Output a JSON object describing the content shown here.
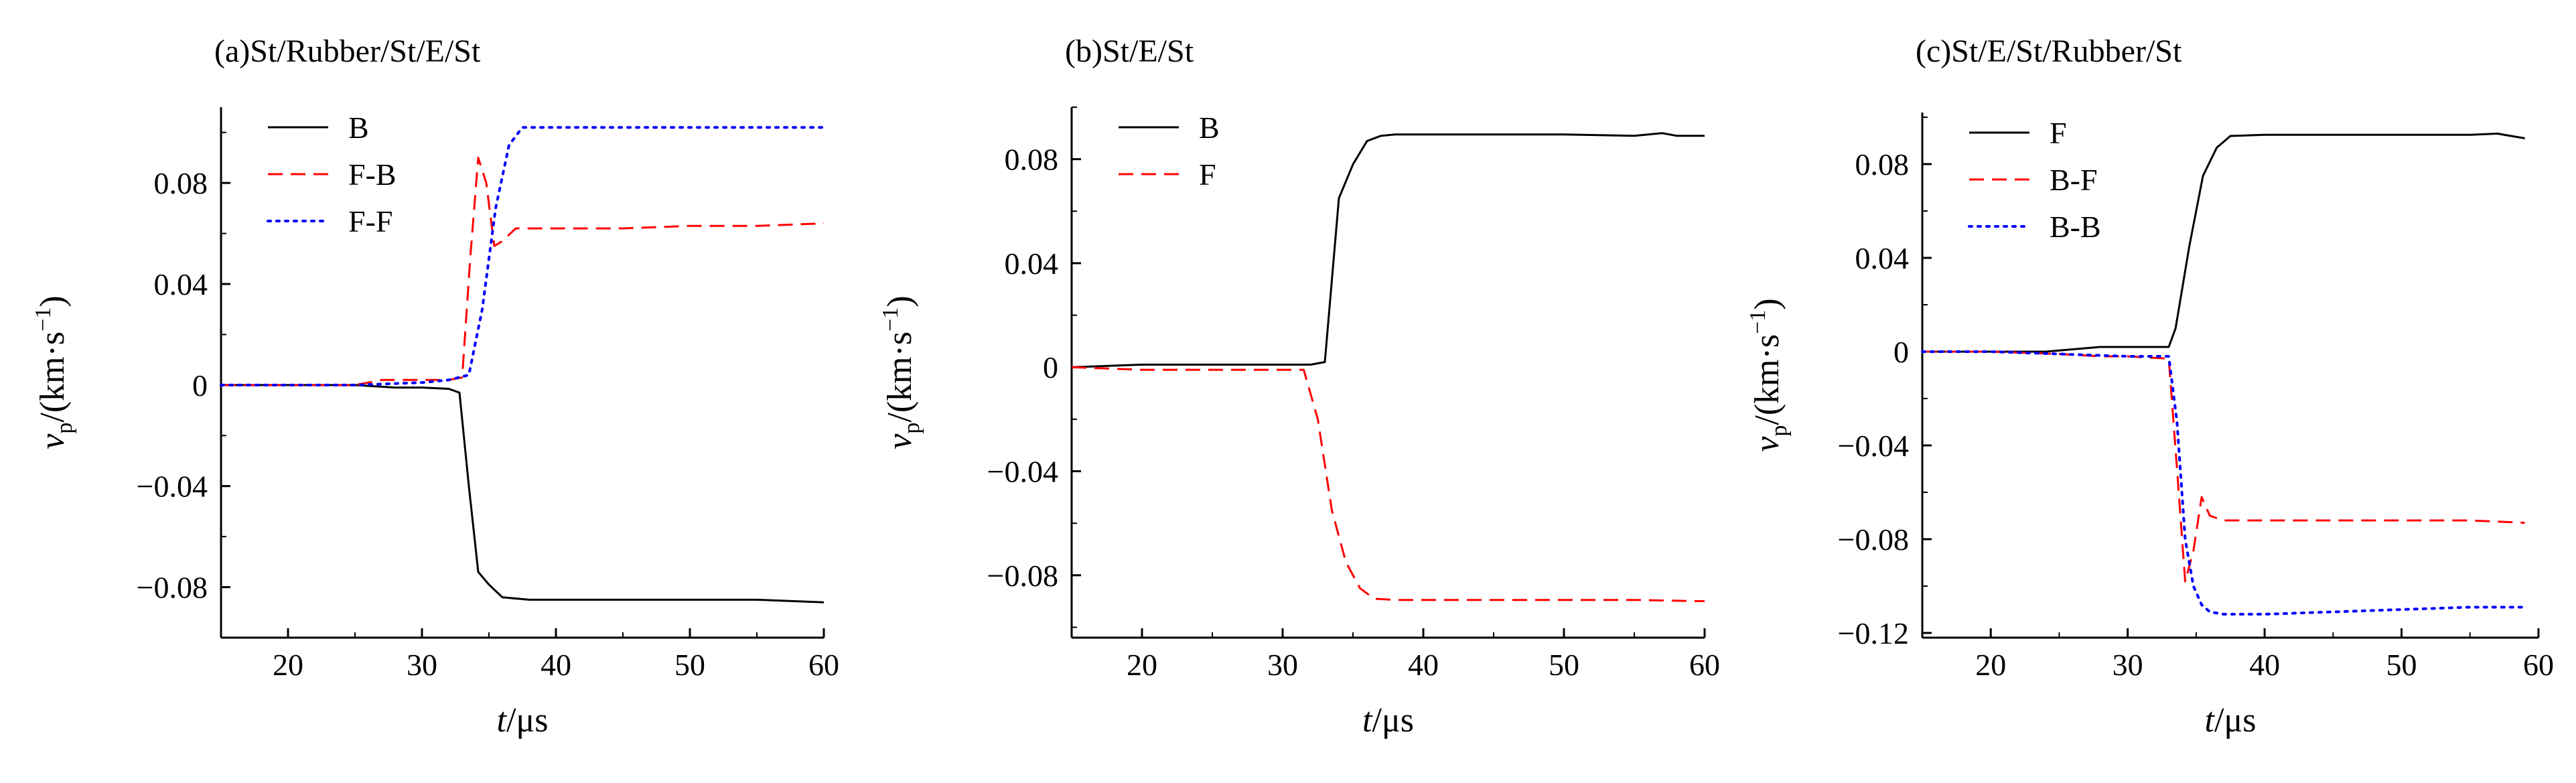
{
  "chart_data": [
    {
      "type": "line",
      "title": "(a)St/Rubber/St/E/St",
      "xlabel": "t/μs",
      "ylabel": "vp/(km·s−1)",
      "xlim": [
        15,
        60
      ],
      "ylim": [
        -0.1,
        0.11
      ],
      "xticks": [
        "20",
        "30",
        "40",
        "50",
        "60"
      ],
      "xtick_values": [
        20,
        30,
        40,
        50,
        60
      ],
      "yticks": [
        "0.08",
        "0.04",
        "0",
        "−0.04",
        "−0.08"
      ],
      "ytick_values": [
        0.08,
        0.04,
        0,
        -0.04,
        -0.08
      ],
      "legend_position": "top-left",
      "series": [
        {
          "name": "B",
          "color": "#000000",
          "dash": "solid",
          "x": [
            15,
            20,
            25,
            28,
            30,
            32,
            32.8,
            33.5,
            34.2,
            35,
            36,
            38,
            40,
            45,
            50,
            55,
            60
          ],
          "y": [
            0,
            0,
            0,
            -0.001,
            -0.001,
            -0.0015,
            -0.003,
            -0.04,
            -0.074,
            -0.079,
            -0.084,
            -0.085,
            -0.085,
            -0.085,
            -0.085,
            -0.085,
            -0.086
          ]
        },
        {
          "name": "F-B",
          "color": "#ff0000",
          "dash": "dashed",
          "x": [
            15,
            20,
            25,
            27,
            30,
            32,
            33,
            33.6,
            34.2,
            34.8,
            35.4,
            36,
            36.6,
            37,
            40,
            45,
            50,
            55,
            60
          ],
          "y": [
            0,
            0,
            0,
            0.002,
            0.002,
            0.002,
            0.003,
            0.05,
            0.09,
            0.08,
            0.055,
            0.057,
            0.06,
            0.062,
            0.062,
            0.062,
            0.063,
            0.063,
            0.064
          ]
        },
        {
          "name": "F-F",
          "color": "#0000ff",
          "dash": "dotted",
          "x": [
            15,
            20,
            25,
            30,
            32,
            33.5,
            34.5,
            35.5,
            36.5,
            37.5,
            40,
            45,
            50,
            55,
            60
          ],
          "y": [
            0,
            0,
            0,
            0.001,
            0.002,
            0.004,
            0.03,
            0.07,
            0.095,
            0.102,
            0.102,
            0.102,
            0.102,
            0.102,
            0.102
          ]
        }
      ]
    },
    {
      "type": "line",
      "title": "(b)St/E/St",
      "xlabel": "t/μs",
      "ylabel": "vp/(km·s−1)",
      "xlim": [
        15,
        60
      ],
      "ylim": [
        -0.104,
        0.1
      ],
      "xticks": [
        "20",
        "30",
        "40",
        "50",
        "60"
      ],
      "xtick_values": [
        20,
        30,
        40,
        50,
        60
      ],
      "yticks": [
        "0.08",
        "0.04",
        "0",
        "−0.04",
        "−0.08"
      ],
      "ytick_values": [
        0.08,
        0.04,
        0,
        -0.04,
        -0.08
      ],
      "legend_position": "top-left",
      "series": [
        {
          "name": "B",
          "color": "#000000",
          "dash": "solid",
          "x": [
            15,
            20,
            25,
            30,
            32,
            33,
            34,
            35,
            36,
            37,
            38,
            40,
            45,
            50,
            55,
            57,
            58,
            60
          ],
          "y": [
            0,
            0.001,
            0.001,
            0.001,
            0.001,
            0.002,
            0.065,
            0.078,
            0.087,
            0.089,
            0.0895,
            0.0895,
            0.0895,
            0.0895,
            0.089,
            0.09,
            0.089,
            0.089
          ]
        },
        {
          "name": "F",
          "color": "#ff0000",
          "dash": "dashed",
          "x": [
            15,
            20,
            25,
            30,
            31.5,
            32.5,
            33.5,
            34.5,
            35.5,
            36.5,
            38,
            40,
            45,
            50,
            55,
            60
          ],
          "y": [
            0,
            -0.001,
            -0.001,
            -0.001,
            -0.001,
            -0.02,
            -0.055,
            -0.075,
            -0.085,
            -0.089,
            -0.0895,
            -0.0895,
            -0.0895,
            -0.0895,
            -0.0895,
            -0.09
          ]
        }
      ]
    },
    {
      "type": "line",
      "title": "(c)St/E/St/Rubber/St",
      "xlabel": "t/μs",
      "ylabel": "vp/(km·s−1)",
      "xlim": [
        15,
        60
      ],
      "ylim": [
        -0.122,
        0.102
      ],
      "xticks": [
        "20",
        "30",
        "40",
        "50",
        "60"
      ],
      "xtick_values": [
        20,
        30,
        40,
        50,
        60
      ],
      "yticks": [
        "0.08",
        "0.04",
        "0",
        "−0.04",
        "−0.08",
        "−0.12"
      ],
      "ytick_values": [
        0.08,
        0.04,
        0,
        -0.04,
        -0.08,
        -0.12
      ],
      "legend_position": "top-left",
      "series": [
        {
          "name": "F",
          "color": "#000000",
          "dash": "solid",
          "x": [
            15,
            20,
            24,
            26,
            28,
            30,
            33,
            33.5,
            34.5,
            35.5,
            36.5,
            37.5,
            40,
            45,
            50,
            55,
            57,
            59
          ],
          "y": [
            0,
            0,
            0,
            0.001,
            0.002,
            0.002,
            0.002,
            0.01,
            0.045,
            0.075,
            0.087,
            0.092,
            0.0925,
            0.0925,
            0.0925,
            0.0925,
            0.093,
            0.091
          ]
        },
        {
          "name": "B-F",
          "color": "#ff0000",
          "dash": "dashed",
          "x": [
            15,
            20,
            25,
            28,
            30,
            33,
            33.6,
            34.2,
            34.8,
            35.4,
            36,
            37,
            40,
            45,
            50,
            55,
            59
          ],
          "y": [
            0,
            0,
            -0.001,
            -0.002,
            -0.002,
            -0.003,
            -0.05,
            -0.098,
            -0.085,
            -0.062,
            -0.07,
            -0.072,
            -0.072,
            -0.072,
            -0.072,
            -0.072,
            -0.073
          ]
        },
        {
          "name": "B-B",
          "color": "#0000ff",
          "dash": "dotted",
          "x": [
            15,
            20,
            25,
            30,
            33,
            33.6,
            34.2,
            34.8,
            35.4,
            36,
            37,
            40,
            45,
            50,
            55,
            59
          ],
          "y": [
            0,
            0,
            -0.001,
            -0.002,
            -0.002,
            -0.03,
            -0.08,
            -0.1,
            -0.108,
            -0.111,
            -0.112,
            -0.112,
            -0.111,
            -0.11,
            -0.109,
            -0.109
          ]
        }
      ]
    }
  ]
}
